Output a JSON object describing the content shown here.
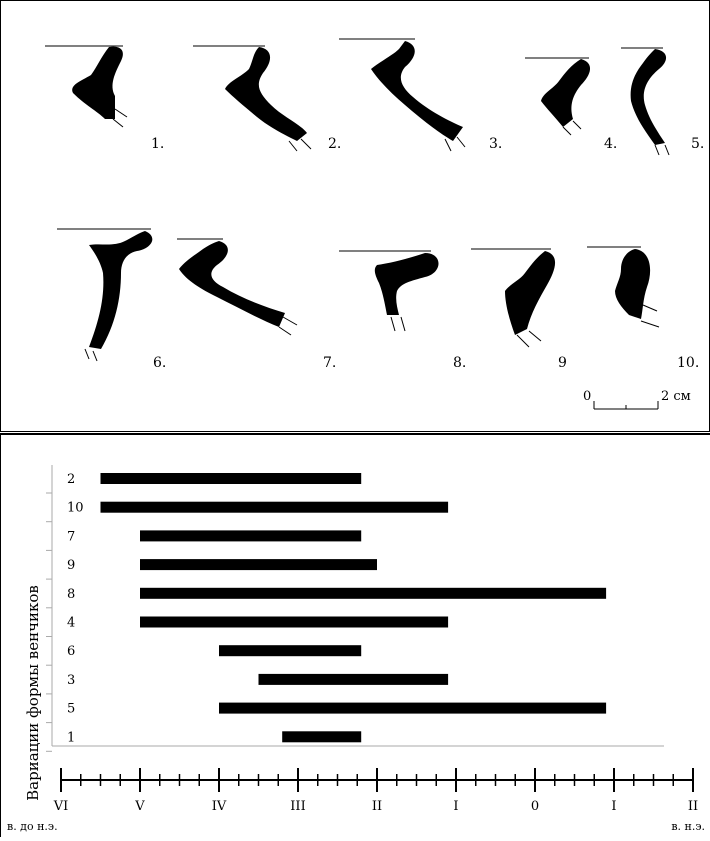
{
  "figure": {
    "profiles": [
      {
        "id": "1",
        "label": "1."
      },
      {
        "id": "2",
        "label": "2."
      },
      {
        "id": "3",
        "label": "3."
      },
      {
        "id": "4",
        "label": "4."
      },
      {
        "id": "5",
        "label": "5."
      },
      {
        "id": "6",
        "label": "6."
      },
      {
        "id": "7",
        "label": "7."
      },
      {
        "id": "8",
        "label": "8."
      },
      {
        "id": "9",
        "label": "9"
      },
      {
        "id": "10",
        "label": "10."
      }
    ],
    "scale_bar": {
      "start_label": "0",
      "end_label": "2 см"
    }
  },
  "chart_data": {
    "type": "range-bar",
    "ylabel": "Вариации формы венчиков",
    "x_unit_labels": {
      "before": "в. до н.э.",
      "after": "в. н.э."
    },
    "x_ticks": [
      {
        "value": -6,
        "label": "VI"
      },
      {
        "value": -5,
        "label": "V"
      },
      {
        "value": -4,
        "label": "IV"
      },
      {
        "value": -3,
        "label": "III"
      },
      {
        "value": -2,
        "label": "II"
      },
      {
        "value": -1,
        "label": "I"
      },
      {
        "value": 0,
        "label": "0"
      },
      {
        "value": 1,
        "label": "I"
      },
      {
        "value": 2,
        "label": "II"
      }
    ],
    "xlim": [
      -6,
      2
    ],
    "rows": [
      {
        "label": "2",
        "start": -5.5,
        "end": -2.2
      },
      {
        "label": "10",
        "start": -5.5,
        "end": -1.1
      },
      {
        "label": "7",
        "start": -5.0,
        "end": -2.2
      },
      {
        "label": "9",
        "start": -5.0,
        "end": -2.0
      },
      {
        "label": "8",
        "start": -5.0,
        "end": 0.9
      },
      {
        "label": "4",
        "start": -5.0,
        "end": -1.1
      },
      {
        "label": "6",
        "start": -4.0,
        "end": -2.2
      },
      {
        "label": "3",
        "start": -3.5,
        "end": -1.1
      },
      {
        "label": "5",
        "start": -4.0,
        "end": 0.9
      },
      {
        "label": "1",
        "start": -3.2,
        "end": -2.2
      }
    ]
  }
}
